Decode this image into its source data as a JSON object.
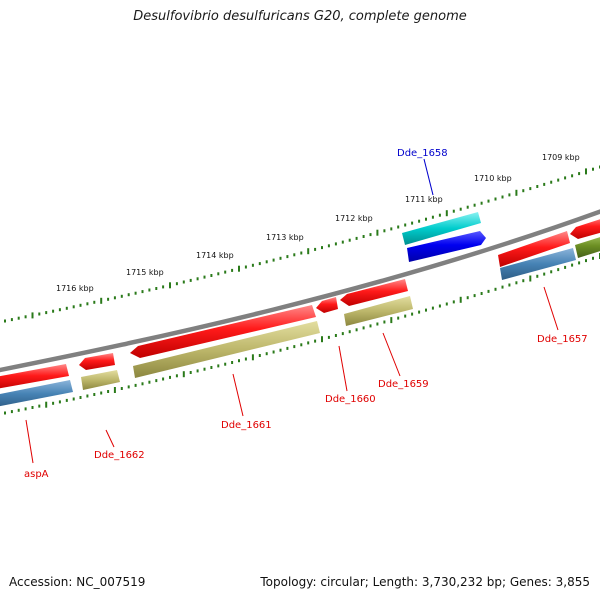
{
  "header": {
    "title": "Desulfovibrio desulfuricans G20, complete genome"
  },
  "footer": {
    "accession": "Accession: NC_007519",
    "info": "Topology: circular; Length: 3,730,232 bp; Genes: 3,855"
  },
  "ruler": {
    "labels": [
      "1709 kbp",
      "1710 kbp",
      "1711 kbp",
      "1712 kbp",
      "1713 kbp",
      "1714 kbp",
      "1715 kbp",
      "1716 kbp"
    ]
  },
  "genes": [
    {
      "name": "aspA",
      "color": "#e00000"
    },
    {
      "name": "Dde_1662",
      "color": "#e00000"
    },
    {
      "name": "Dde_1661",
      "color": "#e00000"
    },
    {
      "name": "Dde_1660",
      "color": "#e00000"
    },
    {
      "name": "Dde_1659",
      "color": "#e00000"
    },
    {
      "name": "Dde_1658",
      "color": "#0000cc"
    },
    {
      "name": "Dde_1657",
      "color": "#e00000"
    }
  ],
  "colors": {
    "backbone": "#808080",
    "ruler": "#2a7a1a",
    "cds_red": "#ff1010",
    "cds_blue": "#0000e0",
    "cog_steel": "#4682b4",
    "cog_khaki": "#bdb76b",
    "cog_cyan": "#00c8c8",
    "cog_olive": "#6b8e23"
  }
}
